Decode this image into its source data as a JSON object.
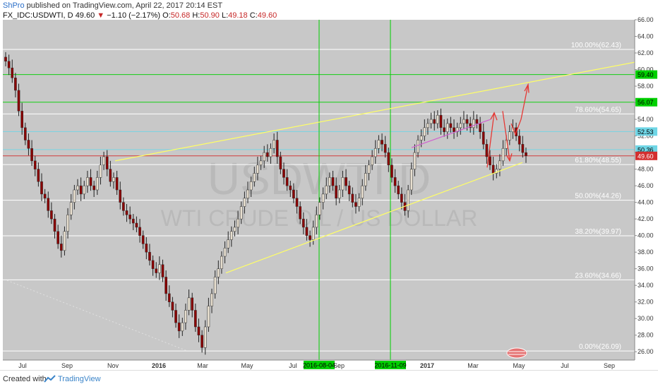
{
  "header": {
    "user": "ShPro",
    "published": "published on TradingView.com, April 22, 2017 20:14 EST",
    "symbol": "FX_IDC:USDWTI, D",
    "last": "49.60",
    "change": "−1.10 (−2.17%)",
    "o_label": "O:",
    "o_val": "50.68",
    "h_label": "H:",
    "h_val": "50.90",
    "l_label": "L:",
    "l_val": "49.18",
    "c_label": "C:",
    "c_val": "49.60"
  },
  "watermark": {
    "symbol": "USDWTI, D",
    "name": "WTI CRUDE OIL / US DOLLAR"
  },
  "footer": {
    "created": "Created with",
    "brand": "TradingView",
    "logo_icon": "tradingview-logo-icon"
  },
  "colors": {
    "background": "#c8c8c8",
    "up_candle": "#e9e0d0",
    "down_candle": "#8b0000",
    "fib_line": "#ffffff",
    "horizontal_green": "#00d000",
    "horizontal_cyan": "#6fd6e6",
    "trend_yellow": "#ffff66",
    "arrow_red": "#e53935",
    "magenta_line": "#d060d0"
  },
  "chart_data": {
    "type": "candlestick",
    "y_axis": {
      "min": 25,
      "max": 66,
      "ticks": [
        "66.00",
        "64.00",
        "62.00",
        "60.00",
        "58.00",
        "56.00",
        "54.00",
        "52.00",
        "50.00",
        "48.00",
        "46.00",
        "44.00",
        "42.00",
        "40.00",
        "38.00",
        "36.00",
        "34.00",
        "32.00",
        "30.00",
        "28.00",
        "26.00"
      ]
    },
    "x_axis": {
      "ticks": [
        "Jul",
        "Sep",
        "Nov",
        "2016",
        "Mar",
        "May",
        "Jul",
        "Sep",
        "2017",
        "Mar",
        "May",
        "Jul",
        "Sep"
      ]
    },
    "price_badges": [
      {
        "value": 59.4,
        "label": "59.40",
        "color": "#00d000"
      },
      {
        "value": 56.07,
        "label": "56.07",
        "color": "#00d000"
      },
      {
        "value": 52.53,
        "label": "52.53",
        "color": "#6fd6e6"
      },
      {
        "value": 50.36,
        "label": "50.36",
        "color": "#6fd6e6"
      },
      {
        "value": 49.6,
        "label": "49.60",
        "color": "#d32f2f"
      }
    ],
    "fib_levels": [
      {
        "value": 62.43,
        "label": "100.00%(62.43)"
      },
      {
        "value": 54.65,
        "label": "78.60%(54.65)"
      },
      {
        "value": 48.55,
        "label": "61.80%(48.55)"
      },
      {
        "value": 44.26,
        "label": "50.00%(44.26)"
      },
      {
        "value": 39.97,
        "label": "38.20%(39.97)"
      },
      {
        "value": 34.66,
        "label": "23.60%(34.66)"
      },
      {
        "value": 26.09,
        "label": "0.00%(26.09)"
      }
    ],
    "date_markers": [
      {
        "label": "2016-08-04"
      },
      {
        "label": "2016-11-09"
      }
    ],
    "series": [
      {
        "name": "USDWTI",
        "closes": [
          61.0,
          60.2,
          59.0,
          57.5,
          55.0,
          53.0,
          51.5,
          50.5,
          49.0,
          48.0,
          46.5,
          45.0,
          44.5,
          43.0,
          42.0,
          40.5,
          39.0,
          38.2,
          40.5,
          42.5,
          44.0,
          45.5,
          46.0,
          45.0,
          46.0,
          47.0,
          46.0,
          45.5,
          47.0,
          48.5,
          49.5,
          48.0,
          46.5,
          47.0,
          45.5,
          44.0,
          43.0,
          42.5,
          42.0,
          41.5,
          41.0,
          40.0,
          39.0,
          38.0,
          37.0,
          36.0,
          35.5,
          36.5,
          35.0,
          33.0,
          32.0,
          31.0,
          29.5,
          28.5,
          29.5,
          31.0,
          32.5,
          31.0,
          29.0,
          28.0,
          26.5,
          29.0,
          31.5,
          33.0,
          35.0,
          36.0,
          37.5,
          38.5,
          39.5,
          40.5,
          41.0,
          42.0,
          43.5,
          44.5,
          45.5,
          46.5,
          47.5,
          48.5,
          49.0,
          50.0,
          49.5,
          50.5,
          51.5,
          49.5,
          48.0,
          47.0,
          46.0,
          45.5,
          44.5,
          43.5,
          42.0,
          41.0,
          40.0,
          39.5,
          41.0,
          42.5,
          44.0,
          45.0,
          46.0,
          47.0,
          46.0,
          44.5,
          45.5,
          47.0,
          46.0,
          45.0,
          44.0,
          43.5,
          44.5,
          46.0,
          47.5,
          48.5,
          49.5,
          50.5,
          51.5,
          51.0,
          50.0,
          48.5,
          47.0,
          46.0,
          45.0,
          44.0,
          43.0,
          45.5,
          48.0,
          50.0,
          51.5,
          52.0,
          53.0,
          53.5,
          54.0,
          53.5,
          54.5,
          53.0,
          52.5,
          53.5,
          53.0,
          52.5,
          53.0,
          53.5,
          54.0,
          53.5,
          53.0,
          54.0,
          53.5,
          52.5,
          51.0,
          49.5,
          48.5,
          47.5,
          48.0,
          49.0,
          50.5,
          51.5,
          52.5,
          53.0,
          52.0,
          51.0,
          50.0,
          49.6
        ]
      }
    ]
  }
}
